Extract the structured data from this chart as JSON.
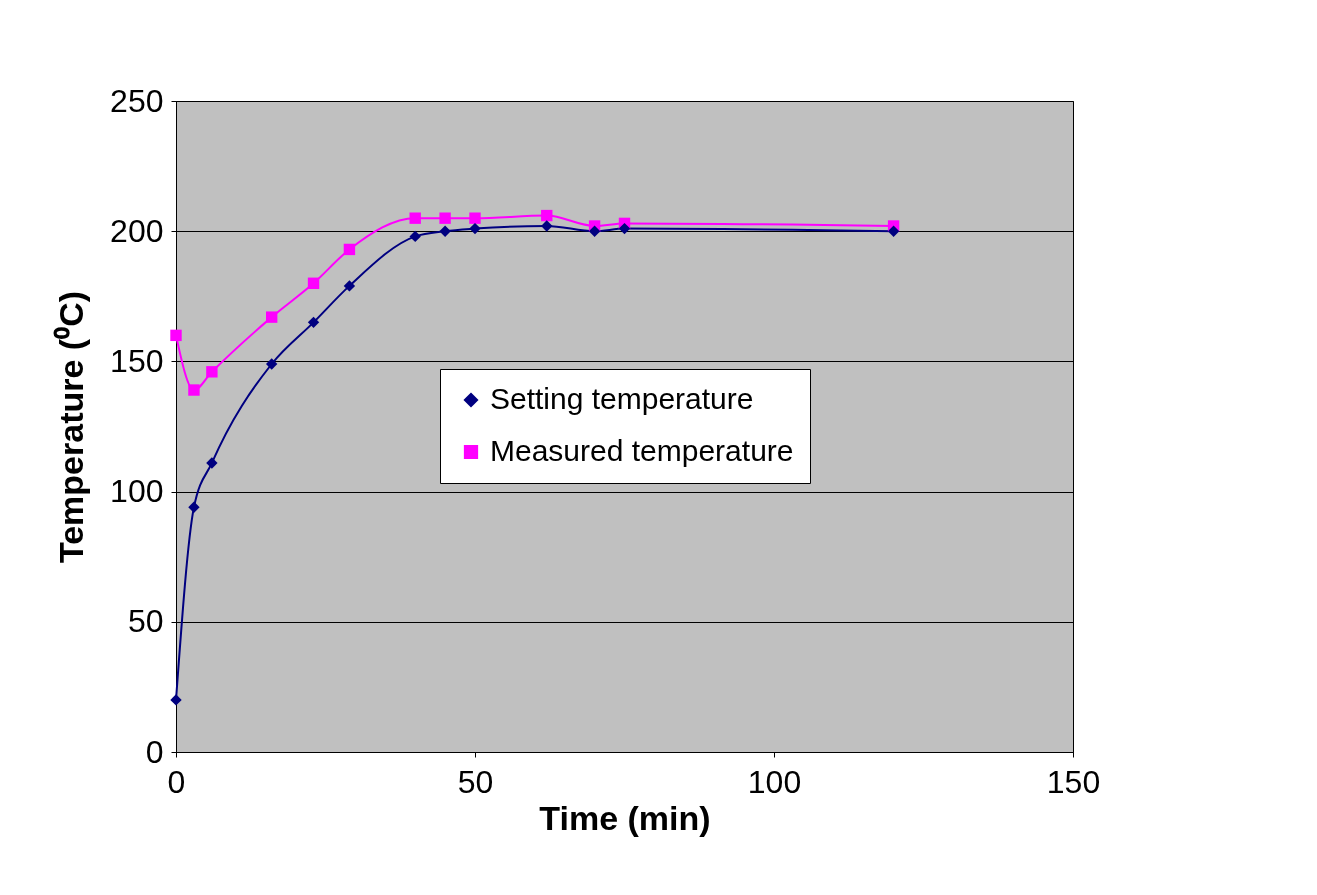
{
  "chart_data": {
    "type": "line",
    "xlabel": "Time (min)",
    "ylabel": "Temperature (⁰C)",
    "x": [
      0,
      3,
      6,
      16,
      23,
      29,
      40,
      45,
      50,
      62,
      70,
      75,
      120
    ],
    "series": [
      {
        "name": "Setting temperature",
        "color": "#000080",
        "marker": "diamond",
        "values": [
          20,
          94,
          111,
          149,
          165,
          179,
          198,
          200,
          201,
          202,
          200,
          201,
          200
        ]
      },
      {
        "name": "Measured temperature",
        "color": "#ff00ff",
        "marker": "square",
        "values": [
          160,
          139,
          146,
          167,
          180,
          193,
          205,
          205,
          205,
          206,
          202,
          203,
          202
        ]
      }
    ],
    "xlim": [
      0,
      150
    ],
    "xticks": [
      0,
      50,
      100,
      150
    ],
    "ylim": [
      0,
      250
    ],
    "yticks": [
      0,
      50,
      100,
      150,
      200,
      250
    ],
    "grid": "y",
    "legend": "right",
    "line_style": "solid"
  }
}
